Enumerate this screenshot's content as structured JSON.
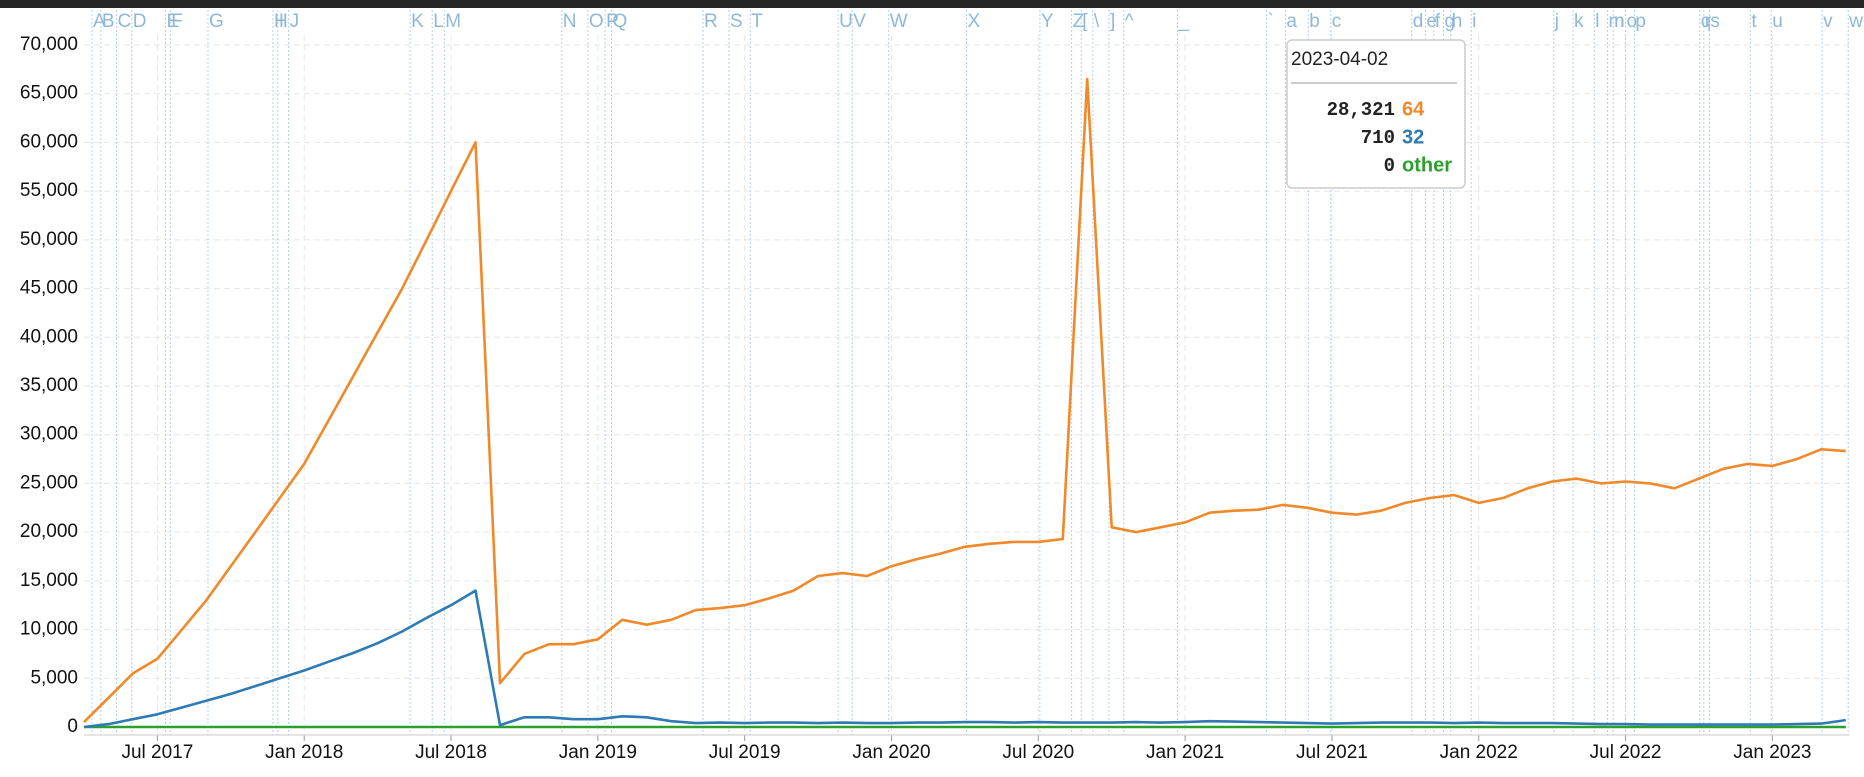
{
  "chart_data": {
    "type": "line",
    "x": [
      "2017-04",
      "2017-05",
      "2017-06",
      "2017-07",
      "2017-08",
      "2017-09",
      "2017-10",
      "2017-11",
      "2017-12",
      "2018-01",
      "2018-02",
      "2018-03",
      "2018-04",
      "2018-05",
      "2018-06",
      "2018-07",
      "2018-08",
      "2018-09",
      "2018-10",
      "2018-11",
      "2018-12",
      "2019-01",
      "2019-02",
      "2019-03",
      "2019-04",
      "2019-05",
      "2019-06",
      "2019-07",
      "2019-08",
      "2019-09",
      "2019-10",
      "2019-11",
      "2019-12",
      "2020-01",
      "2020-02",
      "2020-03",
      "2020-04",
      "2020-05",
      "2020-06",
      "2020-07",
      "2020-08",
      "2020-09",
      "2020-10",
      "2020-11",
      "2020-12",
      "2021-01",
      "2021-02",
      "2021-03",
      "2021-04",
      "2021-05",
      "2021-06",
      "2021-07",
      "2021-08",
      "2021-09",
      "2021-10",
      "2021-11",
      "2021-12",
      "2022-01",
      "2022-02",
      "2022-03",
      "2022-04",
      "2022-05",
      "2022-06",
      "2022-07",
      "2022-08",
      "2022-09",
      "2022-10",
      "2022-11",
      "2022-12",
      "2023-01",
      "2023-02",
      "2023-03",
      "2023-04"
    ],
    "series": [
      {
        "name": "64",
        "color": "#f0892a",
        "values": [
          500,
          3000,
          5500,
          7000,
          10000,
          13000,
          16500,
          20000,
          23500,
          27000,
          31500,
          36000,
          40500,
          45000,
          50000,
          55000,
          60000,
          4500,
          7500,
          8500,
          8500,
          9000,
          11000,
          10500,
          11000,
          12000,
          12200,
          12500,
          13200,
          14000,
          15500,
          15800,
          15500,
          16500,
          17200,
          17800,
          18500,
          18800,
          19000,
          19000,
          19300,
          66500,
          20500,
          20000,
          20500,
          21000,
          22000,
          22200,
          22300,
          22800,
          22500,
          22000,
          21800,
          22200,
          23000,
          23500,
          23800,
          23000,
          23500,
          24500,
          25200,
          25500,
          25000,
          25200,
          25000,
          24500,
          25500,
          26500,
          27000,
          26800,
          27500,
          28500,
          28321
        ]
      },
      {
        "name": "32",
        "color": "#2e7bb4",
        "values": [
          0,
          300,
          800,
          1300,
          2000,
          2700,
          3400,
          4200,
          5000,
          5800,
          6700,
          7600,
          8600,
          9800,
          11200,
          12500,
          14000,
          200,
          1000,
          1000,
          800,
          800,
          1100,
          1000,
          600,
          400,
          450,
          400,
          450,
          450,
          400,
          450,
          400,
          400,
          450,
          450,
          500,
          500,
          450,
          500,
          450,
          450,
          450,
          500,
          450,
          500,
          600,
          550,
          500,
          450,
          400,
          350,
          400,
          450,
          450,
          450,
          400,
          450,
          400,
          400,
          400,
          350,
          300,
          300,
          250,
          250,
          250,
          250,
          250,
          250,
          300,
          350,
          710
        ]
      },
      {
        "name": "other",
        "color": "#2ca02c",
        "values": [
          0,
          0,
          0,
          0,
          0,
          0,
          0,
          0,
          0,
          0,
          0,
          0,
          0,
          0,
          0,
          0,
          0,
          0,
          0,
          0,
          0,
          0,
          0,
          0,
          0,
          0,
          0,
          0,
          0,
          0,
          0,
          0,
          0,
          0,
          0,
          0,
          0,
          0,
          0,
          0,
          0,
          0,
          0,
          0,
          0,
          0,
          0,
          0,
          0,
          0,
          0,
          0,
          0,
          0,
          0,
          0,
          0,
          0,
          0,
          0,
          0,
          0,
          0,
          0,
          0,
          0,
          0,
          0,
          0,
          0,
          0,
          0,
          0
        ]
      }
    ],
    "xlim": [
      "2017-04",
      "2023-04-05"
    ],
    "xticks": [
      {
        "value": "2017-07",
        "label": "Jul 2017"
      },
      {
        "value": "2018-01",
        "label": "Jan 2018"
      },
      {
        "value": "2018-07",
        "label": "Jul 2018"
      },
      {
        "value": "2019-01",
        "label": "Jan 2019"
      },
      {
        "value": "2019-07",
        "label": "Jul 2019"
      },
      {
        "value": "2020-01",
        "label": "Jan 2020"
      },
      {
        "value": "2020-07",
        "label": "Jul 2020"
      },
      {
        "value": "2021-01",
        "label": "Jan 2021"
      },
      {
        "value": "2021-07",
        "label": "Jul 2021"
      },
      {
        "value": "2022-01",
        "label": "Jan 2022"
      },
      {
        "value": "2022-07",
        "label": "Jul 2022"
      },
      {
        "value": "2023-01",
        "label": "Jan 2023"
      }
    ],
    "ylim": [
      0,
      70000
    ],
    "yticks": [
      0,
      {
        "value": 5000,
        "label": "5,000"
      },
      {
        "value": 10000,
        "label": "10,000"
      },
      {
        "value": 15000,
        "label": "15,000"
      },
      {
        "value": 20000,
        "label": "20,000"
      },
      {
        "value": 25000,
        "label": "25,000"
      },
      {
        "value": 30000,
        "label": "30,000"
      },
      {
        "value": 35000,
        "label": "35,000"
      },
      {
        "value": 40000,
        "label": "40,000"
      },
      {
        "value": 45000,
        "label": "45,000"
      },
      {
        "value": 50000,
        "label": "50,000"
      },
      {
        "value": 55000,
        "label": "55,000"
      },
      {
        "value": 60000,
        "label": "60,000"
      },
      {
        "value": 65000,
        "label": "65,000"
      },
      {
        "value": 70000,
        "label": "70,000"
      }
    ],
    "grid": true,
    "annotations": [
      {
        "x": "2017-04-11",
        "label": "A"
      },
      {
        "x": "2017-04-22",
        "label": "B"
      },
      {
        "x": "2017-05-11",
        "label": "C"
      },
      {
        "x": "2017-05-30",
        "label": "D"
      },
      {
        "x": "2017-07-11",
        "label": "E"
      },
      {
        "x": "2017-07-17",
        "label": "F"
      },
      {
        "x": "2017-09-03",
        "label": "G"
      },
      {
        "x": "2017-11-23",
        "label": "H"
      },
      {
        "x": "2017-11-29",
        "label": "I"
      },
      {
        "x": "2017-12-12",
        "label": "J"
      },
      {
        "x": "2018-05-11",
        "label": "K"
      },
      {
        "x": "2018-06-08",
        "label": "L"
      },
      {
        "x": "2018-06-23",
        "label": "M"
      },
      {
        "x": "2018-11-17",
        "label": "N"
      },
      {
        "x": "2018-12-19",
        "label": "O"
      },
      {
        "x": "2019-01-10",
        "label": "P"
      },
      {
        "x": "2019-01-18",
        "label": "Q"
      },
      {
        "x": "2019-05-10",
        "label": "R"
      },
      {
        "x": "2019-06-12",
        "label": "S"
      },
      {
        "x": "2019-07-08",
        "label": "T"
      },
      {
        "x": "2019-10-26",
        "label": "U"
      },
      {
        "x": "2019-11-13",
        "label": "V"
      },
      {
        "x": "2019-12-28",
        "label": "W"
      },
      {
        "x": "2020-04-03",
        "label": "X"
      },
      {
        "x": "2020-07-03",
        "label": "Y"
      },
      {
        "x": "2020-08-12",
        "label": "Z"
      },
      {
        "x": "2020-08-24",
        "label": "["
      },
      {
        "x": "2020-09-08",
        "label": "\\"
      },
      {
        "x": "2020-09-28",
        "label": "]"
      },
      {
        "x": "2020-10-16",
        "label": "^"
      },
      {
        "x": "2020-12-22",
        "label": "_"
      },
      {
        "x": "2021-04-11",
        "label": "`"
      },
      {
        "x": "2021-05-04",
        "label": "a"
      },
      {
        "x": "2021-06-02",
        "label": "b"
      },
      {
        "x": "2021-06-30",
        "label": "c"
      },
      {
        "x": "2021-10-09",
        "label": "d"
      },
      {
        "x": "2021-10-26",
        "label": "e"
      },
      {
        "x": "2021-11-06",
        "label": "f"
      },
      {
        "x": "2021-11-18",
        "label": "g"
      },
      {
        "x": "2021-11-27",
        "label": "h"
      },
      {
        "x": "2021-12-22",
        "label": "i"
      },
      {
        "x": "2022-04-03",
        "label": "j"
      },
      {
        "x": "2022-04-27",
        "label": "k"
      },
      {
        "x": "2022-05-23",
        "label": "l"
      },
      {
        "x": "2022-06-09",
        "label": "m"
      },
      {
        "x": "2022-06-16",
        "label": "n"
      },
      {
        "x": "2022-07-01",
        "label": "o"
      },
      {
        "x": "2022-07-12",
        "label": "p"
      },
      {
        "x": "2022-10-02",
        "label": "q"
      },
      {
        "x": "2022-10-07",
        "label": "r"
      },
      {
        "x": "2022-10-14",
        "label": "s"
      },
      {
        "x": "2022-12-04",
        "label": "t"
      },
      {
        "x": "2022-12-30",
        "label": "u"
      },
      {
        "x": "2023-03-02",
        "label": "v"
      },
      {
        "x": "2023-04-04",
        "label": "w"
      }
    ],
    "tooltip": {
      "date": "2023-04-02",
      "values": [
        "28,321",
        "710",
        "0"
      ]
    }
  }
}
